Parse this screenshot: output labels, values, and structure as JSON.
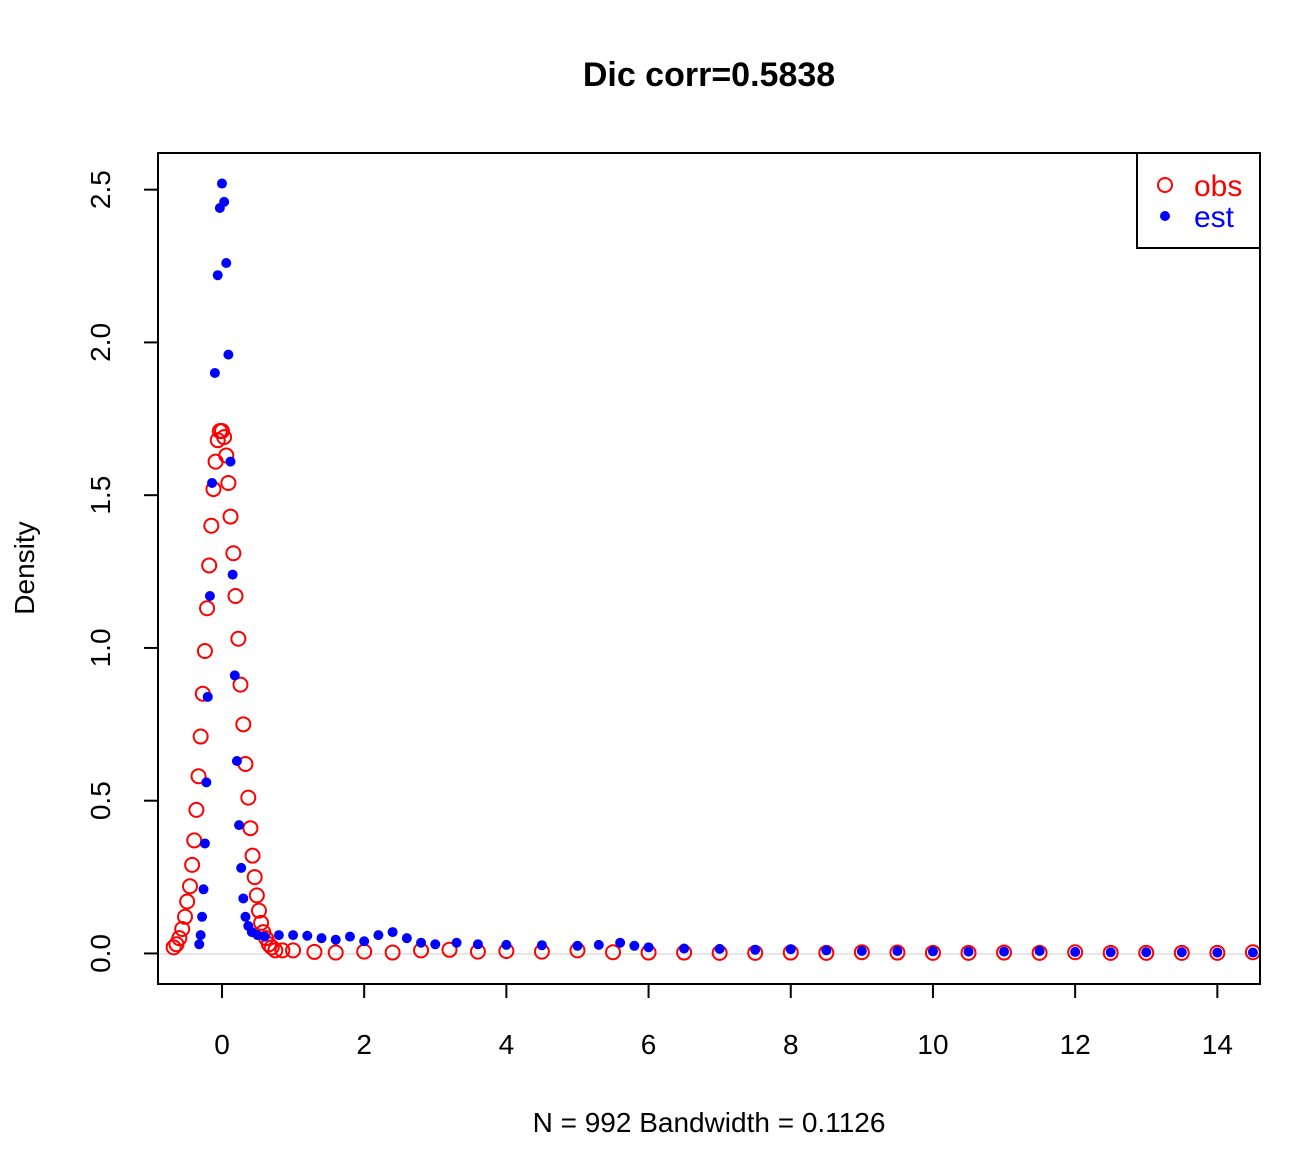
{
  "chart_data": {
    "type": "scatter",
    "title": "Dic corr=0.5838",
    "xlabel": "N = 992   Bandwidth = 0.1126",
    "ylabel": "Density",
    "xlim": [
      -0.9,
      14.6
    ],
    "ylim": [
      -0.1,
      2.62
    ],
    "x_ticks": [
      0,
      2,
      4,
      6,
      8,
      10,
      12,
      14
    ],
    "x_tick_labels": [
      "0",
      "2",
      "4",
      "6",
      "8",
      "10",
      "12",
      "14"
    ],
    "y_ticks": [
      0.0,
      0.5,
      1.0,
      1.5,
      2.0,
      2.5
    ],
    "y_tick_labels": [
      "0.0",
      "0.5",
      "1.0",
      "1.5",
      "2.0",
      "2.5"
    ],
    "grid": false,
    "legend_position": "top-right",
    "colors": {
      "obs": "#ff0000",
      "est": "#0000ff",
      "axis": "#000000",
      "baseline": "#e6e6e6"
    },
    "series": [
      {
        "name": "obs",
        "marker": "open-circle",
        "color": "#ff0000",
        "points": [
          [
            -0.68,
            0.02
          ],
          [
            -0.64,
            0.03
          ],
          [
            -0.6,
            0.05
          ],
          [
            -0.56,
            0.08
          ],
          [
            -0.52,
            0.12
          ],
          [
            -0.49,
            0.17
          ],
          [
            -0.45,
            0.22
          ],
          [
            -0.42,
            0.29
          ],
          [
            -0.39,
            0.37
          ],
          [
            -0.36,
            0.47
          ],
          [
            -0.33,
            0.58
          ],
          [
            -0.3,
            0.71
          ],
          [
            -0.27,
            0.85
          ],
          [
            -0.24,
            0.99
          ],
          [
            -0.21,
            1.13
          ],
          [
            -0.18,
            1.27
          ],
          [
            -0.15,
            1.4
          ],
          [
            -0.12,
            1.52
          ],
          [
            -0.09,
            1.61
          ],
          [
            -0.06,
            1.68
          ],
          [
            -0.03,
            1.71
          ],
          [
            0.0,
            1.71
          ],
          [
            0.03,
            1.69
          ],
          [
            0.06,
            1.63
          ],
          [
            0.09,
            1.54
          ],
          [
            0.12,
            1.43
          ],
          [
            0.16,
            1.31
          ],
          [
            0.19,
            1.17
          ],
          [
            0.23,
            1.03
          ],
          [
            0.26,
            0.88
          ],
          [
            0.3,
            0.75
          ],
          [
            0.33,
            0.62
          ],
          [
            0.37,
            0.51
          ],
          [
            0.4,
            0.41
          ],
          [
            0.43,
            0.32
          ],
          [
            0.46,
            0.25
          ],
          [
            0.49,
            0.19
          ],
          [
            0.52,
            0.14
          ],
          [
            0.55,
            0.1
          ],
          [
            0.58,
            0.07
          ],
          [
            0.62,
            0.05
          ],
          [
            0.66,
            0.03
          ],
          [
            0.7,
            0.02
          ],
          [
            0.75,
            0.01
          ],
          [
            0.85,
            0.01
          ],
          [
            1.0,
            0.01
          ],
          [
            1.3,
            0.005
          ],
          [
            1.6,
            0.003
          ],
          [
            2.0,
            0.006
          ],
          [
            2.4,
            0.003
          ],
          [
            2.8,
            0.01
          ],
          [
            3.2,
            0.012
          ],
          [
            3.6,
            0.006
          ],
          [
            4.0,
            0.008
          ],
          [
            4.5,
            0.006
          ],
          [
            5.0,
            0.01
          ],
          [
            5.5,
            0.004
          ],
          [
            6.0,
            0.003
          ],
          [
            6.5,
            0.003
          ],
          [
            7.0,
            0.002
          ],
          [
            7.5,
            0.002
          ],
          [
            8.0,
            0.003
          ],
          [
            8.5,
            0.002
          ],
          [
            9.0,
            0.004
          ],
          [
            9.5,
            0.003
          ],
          [
            10.0,
            0.002
          ],
          [
            10.5,
            0.002
          ],
          [
            11.0,
            0.003
          ],
          [
            11.5,
            0.002
          ],
          [
            12.0,
            0.004
          ],
          [
            12.5,
            0.002
          ],
          [
            13.0,
            0.002
          ],
          [
            13.5,
            0.002
          ],
          [
            14.0,
            0.002
          ],
          [
            14.5,
            0.004
          ]
        ]
      },
      {
        "name": "est",
        "marker": "filled-circle",
        "color": "#0000ff",
        "points": [
          [
            -0.32,
            0.03
          ],
          [
            -0.3,
            0.06
          ],
          [
            -0.28,
            0.12
          ],
          [
            -0.26,
            0.21
          ],
          [
            -0.24,
            0.36
          ],
          [
            -0.22,
            0.56
          ],
          [
            -0.2,
            0.84
          ],
          [
            -0.17,
            1.17
          ],
          [
            -0.14,
            1.54
          ],
          [
            -0.1,
            1.9
          ],
          [
            -0.06,
            2.22
          ],
          [
            -0.03,
            2.44
          ],
          [
            0.0,
            2.52
          ],
          [
            0.03,
            2.46
          ],
          [
            0.06,
            2.26
          ],
          [
            0.09,
            1.96
          ],
          [
            0.12,
            1.61
          ],
          [
            0.15,
            1.24
          ],
          [
            0.18,
            0.91
          ],
          [
            0.21,
            0.63
          ],
          [
            0.24,
            0.42
          ],
          [
            0.27,
            0.28
          ],
          [
            0.3,
            0.18
          ],
          [
            0.33,
            0.12
          ],
          [
            0.37,
            0.09
          ],
          [
            0.42,
            0.07
          ],
          [
            0.5,
            0.06
          ],
          [
            0.6,
            0.055
          ],
          [
            0.8,
            0.06
          ],
          [
            1.0,
            0.06
          ],
          [
            1.2,
            0.058
          ],
          [
            1.4,
            0.05
          ],
          [
            1.6,
            0.045
          ],
          [
            1.8,
            0.055
          ],
          [
            2.0,
            0.04
          ],
          [
            2.2,
            0.06
          ],
          [
            2.4,
            0.07
          ],
          [
            2.6,
            0.05
          ],
          [
            2.8,
            0.035
          ],
          [
            3.0,
            0.03
          ],
          [
            3.3,
            0.035
          ],
          [
            3.6,
            0.03
          ],
          [
            4.0,
            0.028
          ],
          [
            4.5,
            0.027
          ],
          [
            5.0,
            0.025
          ],
          [
            5.3,
            0.028
          ],
          [
            5.6,
            0.035
          ],
          [
            5.8,
            0.025
          ],
          [
            6.0,
            0.02
          ],
          [
            6.5,
            0.016
          ],
          [
            7.0,
            0.015
          ],
          [
            7.5,
            0.012
          ],
          [
            8.0,
            0.014
          ],
          [
            8.5,
            0.01
          ],
          [
            9.0,
            0.008
          ],
          [
            9.5,
            0.008
          ],
          [
            10.0,
            0.007
          ],
          [
            10.5,
            0.006
          ],
          [
            11.0,
            0.006
          ],
          [
            11.5,
            0.008
          ],
          [
            12.0,
            0.005
          ],
          [
            12.5,
            0.004
          ],
          [
            13.0,
            0.004
          ],
          [
            13.5,
            0.004
          ],
          [
            14.0,
            0.003
          ],
          [
            14.5,
            0.003
          ]
        ]
      }
    ]
  }
}
